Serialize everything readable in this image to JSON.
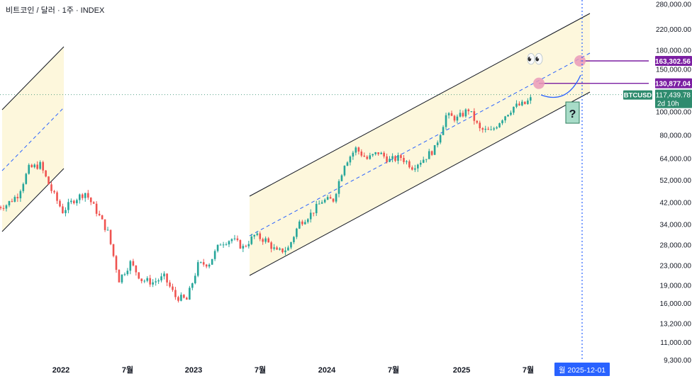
{
  "header": {
    "symbol_title": "비트코인 / 달러 · 1주 · INDEX"
  },
  "colors": {
    "up": "#26a69a",
    "down": "#ef5350",
    "channel_fill": "#fdf7dc",
    "channel_line": "#131722",
    "midline": "#2962ff",
    "marker": "#ea9ab8",
    "target_label": "#7b1fa2",
    "current_label": "#2e8b6e",
    "date_label": "#2962ff",
    "axis_text": "#131722"
  },
  "price_axis": {
    "ticks": [
      "280,000.00",
      "220,000.00",
      "180,000.00",
      "150,000.00",
      "100,000.00",
      "80,000.00",
      "64,000.00",
      "52,000.00",
      "42,000.00",
      "34,000.00",
      "28,000.00",
      "23,000.00",
      "19,000.00",
      "16,000.00",
      "13,200.00",
      "11,000.00",
      "9,300.00"
    ]
  },
  "time_axis": {
    "ticks": [
      "2022",
      "7월",
      "2023",
      "7월",
      "2024",
      "7월",
      "2025",
      "7월"
    ]
  },
  "labels": {
    "target_high": "163,302.56",
    "target_mid": "130,877.04",
    "current_symbol": "BTCUSD",
    "current_price": "117,439.78",
    "countdown": "2d 10h",
    "date_marker": "월 2025-12-01",
    "question_mark": "?",
    "eyes": "👀"
  },
  "chart_data": {
    "type": "line",
    "title": "비트코인 / 달러 · 1주 · INDEX",
    "scale": "log",
    "ylim": [
      9300,
      280000
    ],
    "xlabel": "",
    "ylabel": "",
    "grid": false,
    "series": [
      {
        "x": [
          "2021-08",
          "2021-09",
          "2021-10",
          "2021-11",
          "2021-12",
          "2022-01",
          "2022-02",
          "2022-03",
          "2022-04",
          "2022-05",
          "2022-06",
          "2022-07",
          "2022-08",
          "2022-09",
          "2022-10",
          "2022-11",
          "2022-12",
          "2023-01",
          "2023-02",
          "2023-03",
          "2023-04",
          "2023-05",
          "2023-06",
          "2023-07",
          "2023-08",
          "2023-09",
          "2023-10",
          "2023-11",
          "2023-12",
          "2024-01",
          "2024-02",
          "2024-03",
          "2024-04",
          "2024-05",
          "2024-06",
          "2024-07",
          "2024-08",
          "2024-09",
          "2024-10",
          "2024-11",
          "2024-12",
          "2025-01",
          "2025-02",
          "2025-03",
          "2025-04",
          "2025-05",
          "2025-06",
          "2025-07"
        ],
        "values": [
          41000,
          45000,
          58000,
          60000,
          47000,
          38500,
          43000,
          46000,
          38500,
          31500,
          20000,
          23500,
          20000,
          19500,
          20500,
          17000,
          16500,
          23000,
          23500,
          28500,
          29500,
          27200,
          30500,
          29200,
          26000,
          27000,
          34500,
          37500,
          42500,
          43000,
          61000,
          70000,
          63500,
          67500,
          62700,
          64500,
          59000,
          63500,
          70000,
          96000,
          93500,
          102000,
          84000,
          82500,
          94000,
          104500,
          107500,
          117400
        ]
      }
    ],
    "annotations": [
      {
        "type": "price",
        "value": 163302.56,
        "label": "163,302.56"
      },
      {
        "type": "price",
        "value": 130877.04,
        "label": "130,877.04"
      },
      {
        "type": "current",
        "value": 117439.78,
        "label": "117,439.78",
        "symbol": "BTCUSD"
      },
      {
        "type": "date",
        "value": "2025-12-01",
        "label": "월 2025-12-01"
      }
    ]
  }
}
